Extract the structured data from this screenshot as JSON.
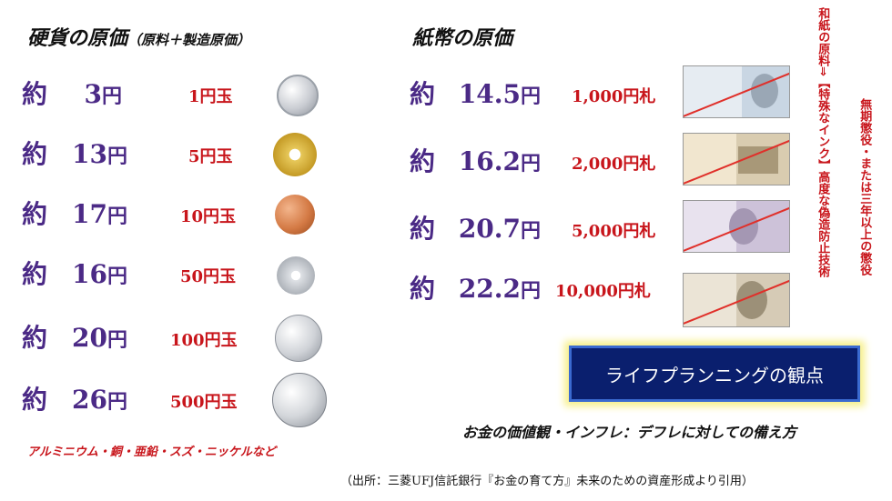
{
  "coins_heading": "硬貨の原価",
  "coins_heading_note": "（原料＋製造原価）",
  "notes_heading": "紙幣の原価",
  "coins": [
    {
      "prefix": "約",
      "cost": "3",
      "unit": "円",
      "label": "1円玉",
      "icon": "1-yen-coin-icon"
    },
    {
      "prefix": "約",
      "cost": "13",
      "unit": "円",
      "label": "5円玉",
      "icon": "5-yen-coin-icon"
    },
    {
      "prefix": "約",
      "cost": "17",
      "unit": "円",
      "label": "10円玉",
      "icon": "10-yen-coin-icon"
    },
    {
      "prefix": "約",
      "cost": "16",
      "unit": "円",
      "label": "50円玉",
      "icon": "50-yen-coin-icon"
    },
    {
      "prefix": "約",
      "cost": "20",
      "unit": "円",
      "label": "100円玉",
      "icon": "100-yen-coin-icon"
    },
    {
      "prefix": "約",
      "cost": "26",
      "unit": "円",
      "label": "500円玉",
      "icon": "500-yen-coin-icon"
    }
  ],
  "notes": [
    {
      "prefix": "約",
      "cost": "14.5",
      "unit": "円",
      "label": "1,000円札",
      "icon": "1000-yen-note-icon"
    },
    {
      "prefix": "約",
      "cost": "16.2",
      "unit": "円",
      "label": "2,000円札",
      "icon": "2000-yen-note-icon"
    },
    {
      "prefix": "約",
      "cost": "20.7",
      "unit": "円",
      "label": "5,000円札",
      "icon": "5000-yen-note-icon"
    },
    {
      "prefix": "約",
      "cost": "22.2",
      "unit": "円",
      "label": "10,000円札",
      "icon": "10000-yen-note-icon"
    }
  ],
  "side_note_1": "和紙の原料⇒【特殊なインク】高度な偽造防止技術",
  "side_note_2": "無期懲役・または三年以上の懲役",
  "life_planning": "ライフプランニングの観点",
  "subtitle": "お金の価値観・インフレ：デフレに対しての備え方",
  "materials": "アルミニウム・銅・亜鉛・スズ・ニッケルなど",
  "source": "（出所：三菱UFJ信託銀行『お金の育て方』未来のための資産形成より引用）",
  "colors": {
    "cost": "#4b2a86",
    "label": "#c8151b",
    "box": "#0a1f6e",
    "glow": "#f7f08a"
  }
}
